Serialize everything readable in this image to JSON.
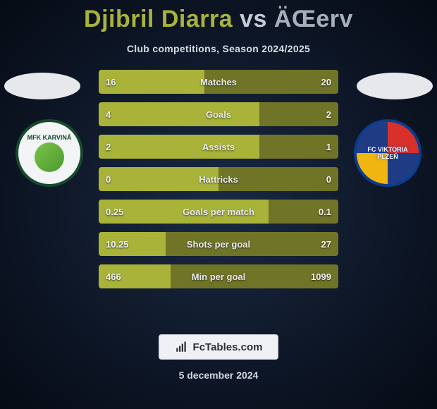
{
  "header": {
    "player1": "Djibril Diarra",
    "vs": "vs",
    "player2": "ÄŒerv",
    "subtitle": "Club competitions, Season 2024/2025"
  },
  "clubs": {
    "left": {
      "name": "MFK KARVINÁ",
      "ring_color": "#164a2c",
      "bg_color": "#f2f4f6"
    },
    "right": {
      "name": "FC VIKTORIA PLZEŇ",
      "colors": [
        "#d9302b",
        "#0a3d8f",
        "#f2c40e"
      ]
    }
  },
  "bars": [
    {
      "label": "Matches",
      "left": "16",
      "right": "20",
      "lw": 44,
      "rw": 56
    },
    {
      "label": "Goals",
      "left": "4",
      "right": "2",
      "lw": 67,
      "rw": 33
    },
    {
      "label": "Assists",
      "left": "2",
      "right": "1",
      "lw": 67,
      "rw": 33
    },
    {
      "label": "Hattricks",
      "left": "0",
      "right": "0",
      "lw": 50,
      "rw": 50
    },
    {
      "label": "Goals per match",
      "left": "0.25",
      "right": "0.1",
      "lw": 71,
      "rw": 29
    },
    {
      "label": "Shots per goal",
      "left": "10.25",
      "right": "27",
      "lw": 28,
      "rw": 72
    },
    {
      "label": "Min per goal",
      "left": "466",
      "right": "1099",
      "lw": 30,
      "rw": 70
    }
  ],
  "colors": {
    "player1_accent": "#a9b33a",
    "bar_left": "#a9b33a",
    "bar_right": "#707427",
    "bar_bg": "#3b3f21"
  },
  "footer": {
    "brand": "FcTables.com",
    "date": "5 december 2024"
  }
}
